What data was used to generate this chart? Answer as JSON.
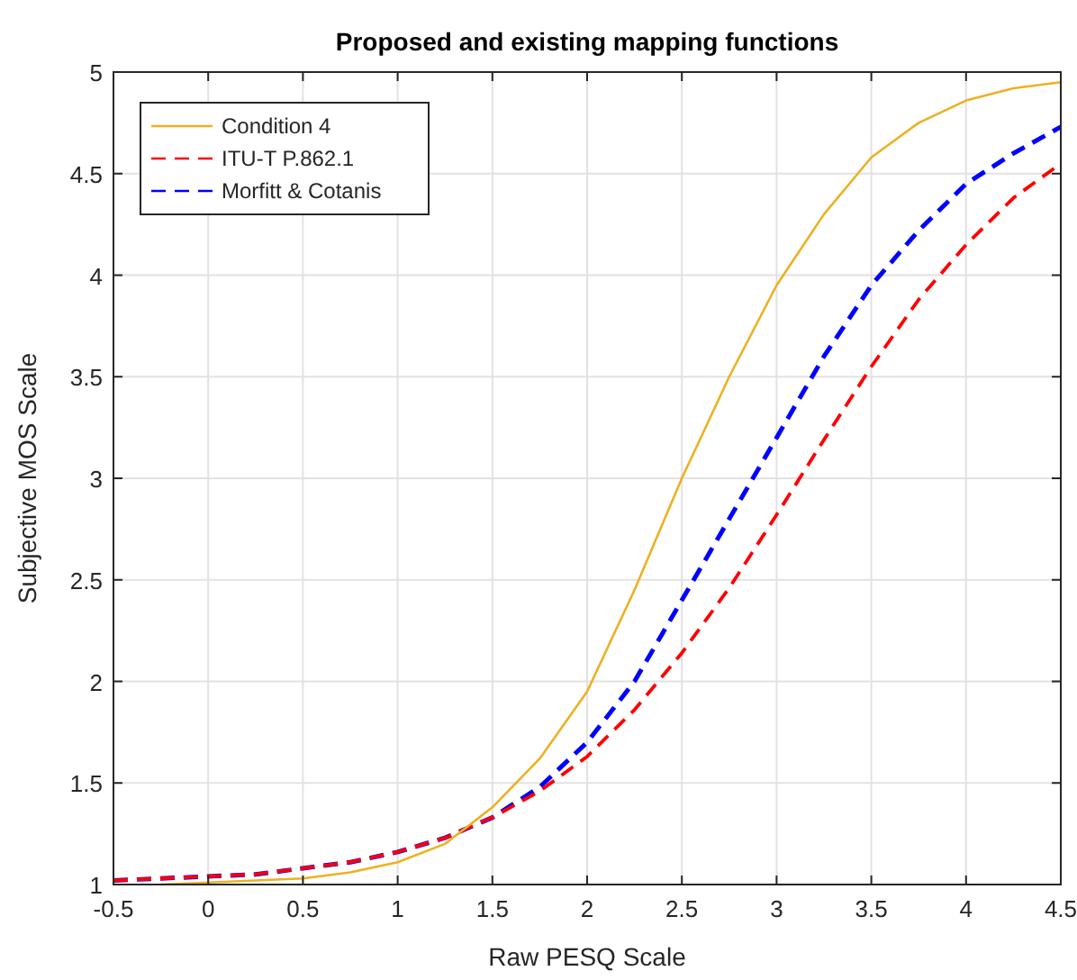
{
  "chart_data": {
    "type": "line",
    "title": "Proposed and existing mapping functions",
    "xlabel": "Raw PESQ Scale",
    "ylabel": "Subjective MOS Scale",
    "x": [
      -0.5,
      -0.25,
      0,
      0.25,
      0.5,
      0.75,
      1,
      1.25,
      1.5,
      1.75,
      2,
      2.25,
      2.5,
      2.75,
      3,
      3.25,
      3.5,
      3.75,
      4,
      4.25,
      4.5
    ],
    "series": [
      {
        "name": "Condition 4",
        "color": "#edb120",
        "line_style": "solid",
        "values": [
          null,
          1.0,
          1.01,
          1.02,
          1.03,
          1.06,
          1.11,
          1.2,
          1.38,
          1.62,
          1.95,
          2.45,
          3.0,
          3.5,
          3.95,
          4.3,
          4.58,
          4.75,
          4.86,
          4.92,
          4.95
        ]
      },
      {
        "name": "ITU-T P.862.1",
        "color": "#ff0000",
        "line_style": "dashed",
        "values": [
          1.02,
          1.03,
          1.04,
          1.05,
          1.08,
          1.11,
          1.16,
          1.23,
          1.33,
          1.46,
          1.63,
          1.86,
          2.14,
          2.46,
          2.82,
          3.19,
          3.55,
          3.88,
          4.15,
          4.38,
          4.55
        ]
      },
      {
        "name": "Morfitt & Cotanis",
        "color": "#0000ff",
        "line_style": "dashed",
        "values": [
          1.02,
          1.03,
          1.04,
          1.05,
          1.08,
          1.11,
          1.16,
          1.23,
          1.33,
          1.48,
          1.7,
          2.0,
          2.4,
          2.8,
          3.2,
          3.6,
          3.95,
          4.22,
          4.45,
          4.6,
          4.73
        ]
      }
    ],
    "xlim": [
      -0.5,
      4.5
    ],
    "xticks": [
      -0.5,
      0,
      0.5,
      1,
      1.5,
      2,
      2.5,
      3,
      3.5,
      4,
      4.5
    ],
    "ylim": [
      1,
      5
    ],
    "yticks": [
      1,
      1.5,
      2,
      2.5,
      3,
      3.5,
      4,
      4.5,
      5
    ],
    "grid": true,
    "legend": "top left"
  }
}
